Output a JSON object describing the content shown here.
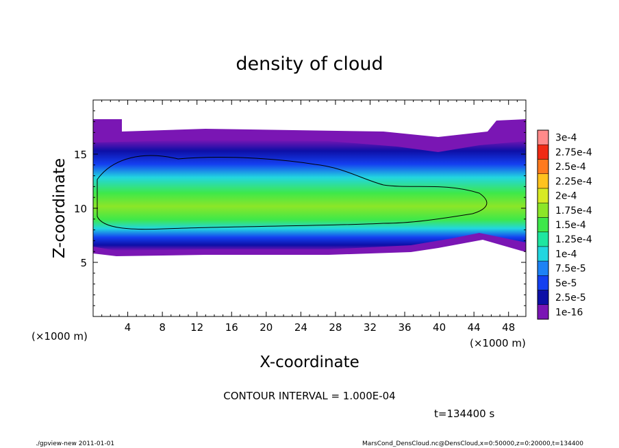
{
  "chart_data": {
    "type": "heatmap",
    "title": "density of cloud",
    "xlabel": "X-coordinate",
    "ylabel": "Z-coordinate",
    "x_unit_label": "(×1000 m)",
    "y_unit_label": "(×1000 m)",
    "xlim": [
      0,
      50
    ],
    "ylim": [
      0,
      20
    ],
    "x_ticks": [
      4,
      8,
      12,
      16,
      20,
      24,
      28,
      32,
      36,
      40,
      44,
      48
    ],
    "y_ticks": [
      5,
      10,
      15
    ],
    "grid": false,
    "contour_interval": "CONTOUR INTERVAL = 1.000E-04",
    "time_label": "t=134400 s",
    "legend": {
      "placement": "right",
      "levels": [
        "1e-16",
        "2.5e-5",
        "5e-5",
        "7.5e-5",
        "1e-4",
        "1.25e-4",
        "1.5e-4",
        "1.75e-4",
        "2e-4",
        "2.25e-4",
        "2.5e-4",
        "2.75e-4",
        "3e-4"
      ],
      "colors": [
        "#7a16b4",
        "#0d0fa6",
        "#1440f0",
        "#1e82f5",
        "#22d6e0",
        "#1ee6a0",
        "#3ee84a",
        "#8ce628",
        "#d8ea24",
        "#ffc21e",
        "#ff7a1e",
        "#f02a14",
        "#ff8a8a"
      ]
    },
    "cloud_region": {
      "x_range": [
        0,
        50
      ],
      "z_range": [
        6,
        18
      ],
      "peak_density": "≈1.75e-4",
      "peak_z": 10.5,
      "contour_level": "1e-4"
    }
  },
  "footer": {
    "left": "./gpview-new   2011-01-01",
    "right": "MarsCond_DensCloud.nc@DensCloud,x=0:50000,z=0:20000,t=134400"
  }
}
